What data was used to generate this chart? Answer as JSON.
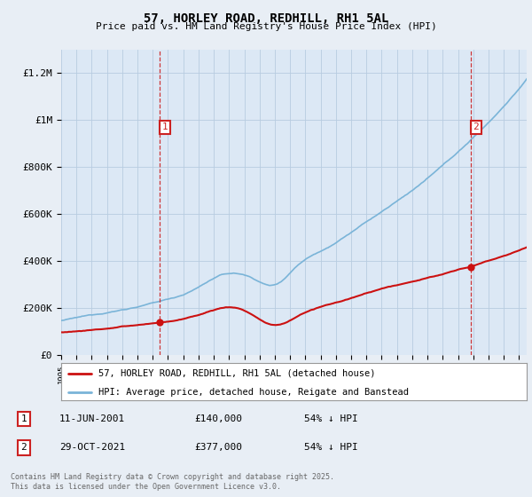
{
  "title": "57, HORLEY ROAD, REDHILL, RH1 5AL",
  "subtitle": "Price paid vs. HM Land Registry's House Price Index (HPI)",
  "ylim": [
    0,
    1300000
  ],
  "yticks": [
    0,
    200000,
    400000,
    600000,
    800000,
    1000000,
    1200000
  ],
  "ytick_labels": [
    "£0",
    "£200K",
    "£400K",
    "£600K",
    "£800K",
    "£1M",
    "£1.2M"
  ],
  "hpi_color": "#7ab4d8",
  "price_color": "#cc1111",
  "vline_color": "#cc2222",
  "background_color": "#e8eef5",
  "plot_bg_color": "#dce8f5",
  "transaction1": {
    "label": "1",
    "date": "11-JUN-2001",
    "price": 140000,
    "note": "54% ↓ HPI",
    "x_year": 2001.44
  },
  "transaction2": {
    "label": "2",
    "date": "29-OCT-2021",
    "price": 377000,
    "note": "54% ↓ HPI",
    "x_year": 2021.83
  },
  "legend_line1": "57, HORLEY ROAD, REDHILL, RH1 5AL (detached house)",
  "legend_line2": "HPI: Average price, detached house, Reigate and Banstead",
  "footer": "Contains HM Land Registry data © Crown copyright and database right 2025.\nThis data is licensed under the Open Government Licence v3.0.",
  "xmin": 1995,
  "xmax": 2025.5
}
